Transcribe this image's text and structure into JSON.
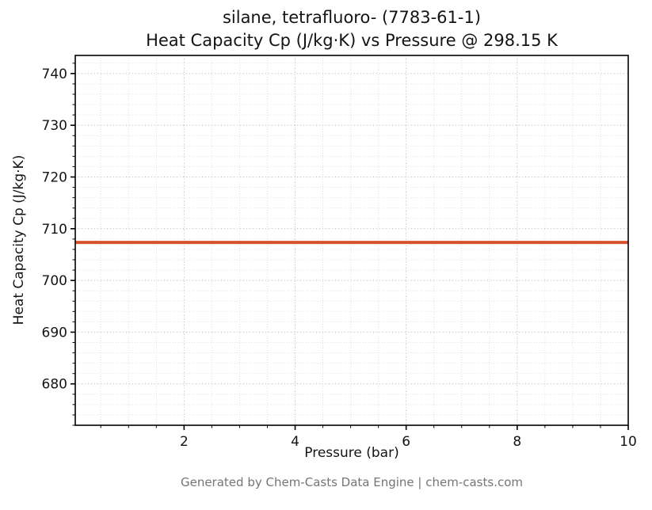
{
  "chart": {
    "title_line1": "silane, tetrafluoro- (7783-61-1)",
    "title_line2": "Heat Capacity Cp (J/kg·K) vs Pressure @ 298.15 K",
    "xlabel": "Pressure (bar)",
    "ylabel": "Heat Capacity Cp (J/kg·K)",
    "footer": "Generated by Chem-Casts Data Engine | chem-casts.com"
  },
  "chart_data": {
    "type": "line",
    "title": "silane, tetrafluoro- (7783-61-1) — Heat Capacity Cp (J/kg·K) vs Pressure @ 298.15 K",
    "xlabel": "Pressure (bar)",
    "ylabel": "Heat Capacity Cp (J/kg·K)",
    "xlim": [
      0.04,
      10
    ],
    "ylim": [
      672,
      743.5
    ],
    "xticks": [
      2,
      4,
      6,
      8,
      10
    ],
    "yticks": [
      680,
      690,
      700,
      710,
      720,
      730,
      740
    ],
    "x_minor_step": 0.5,
    "y_minor_step": 2,
    "grid": true,
    "legend": "none",
    "series": [
      {
        "name": "Heat Capacity Cp @ 298.15 K",
        "x": [
          0.04,
          10
        ],
        "y": [
          707.35,
          707.35
        ]
      }
    ],
    "colors": {
      "line": "#d9512b",
      "major_grid": "#c9c9c9",
      "minor_grid": "#e0e0e0",
      "axis": "#000000",
      "tick_text": "#141414",
      "footer_text": "#757575"
    }
  }
}
